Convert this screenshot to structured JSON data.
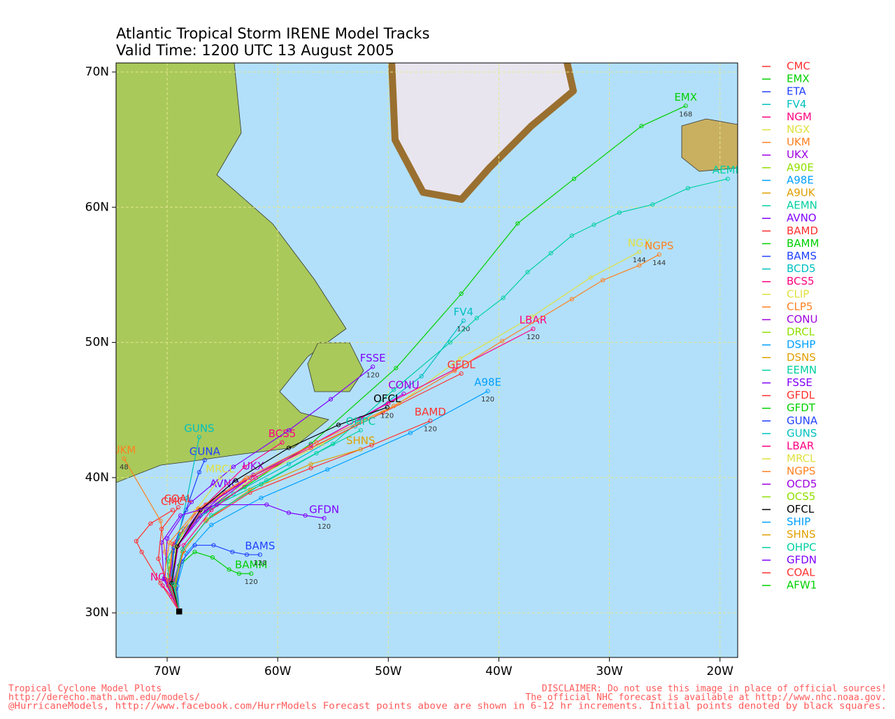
{
  "map": {
    "title": "Atlantic Tropical Storm IRENE Model Tracks",
    "subtitle": "Valid Time: 1200 UTC 13 August 2005",
    "xlim": [
      -74.62,
      -18.4
    ],
    "ylim": [
      26.7,
      70.67
    ],
    "xticks": [
      {
        "value": -70,
        "label": "70W"
      },
      {
        "value": -60,
        "label": "60W"
      },
      {
        "value": -50,
        "label": "50W"
      },
      {
        "value": -40,
        "label": "40W"
      },
      {
        "value": -30,
        "label": "30W"
      },
      {
        "value": -20,
        "label": "20W"
      }
    ],
    "yticks": [
      {
        "value": 30,
        "label": "30N"
      },
      {
        "value": 40,
        "label": "40N"
      },
      {
        "value": 50,
        "label": "50N"
      },
      {
        "value": 60,
        "label": "60N"
      },
      {
        "value": 70,
        "label": "70N"
      }
    ],
    "grid": true,
    "models": [
      {
        "name": "CMC",
        "color": "#ff3030",
        "lon": [
          -68.9,
          -70.6,
          -72.3,
          -72.8,
          -71.5,
          -69.5
        ],
        "lat": [
          30.1,
          32.2,
          34.5,
          35.3,
          36.6,
          37.6
        ]
      },
      {
        "name": "EMX",
        "color": "#00d000",
        "lon": [
          -68.9,
          -69.6,
          -69.8,
          -68.8,
          -66.5,
          -63,
          -57,
          -49.3,
          -43.4,
          -38.3,
          -33.2,
          -27.1,
          -23.1
        ],
        "lat": [
          30.1,
          31.8,
          33.8,
          35.8,
          37.6,
          39.3,
          42.5,
          48.1,
          53.6,
          58.8,
          62.1,
          66.0,
          67.5
        ],
        "end_hour": 168
      },
      {
        "name": "ETA",
        "color": "#2040ff"
      },
      {
        "name": "FV4",
        "color": "#00c0c0",
        "lon": [
          -68.9,
          -69.7,
          -69.5,
          -67.5,
          -64,
          -59,
          -53,
          -47,
          -43.2
        ],
        "lat": [
          30.1,
          32,
          34.5,
          36.8,
          38.8,
          41,
          43.8,
          47.5,
          51.6
        ],
        "end_hour": 120
      },
      {
        "name": "NGM",
        "color": "#ff0080",
        "lon": [
          -68.9,
          -69.6,
          -70.4
        ],
        "lat": [
          30.1,
          31.2,
          32.0
        ]
      },
      {
        "name": "NGX",
        "color": "#e0e040",
        "lon": [
          -68.9,
          -70,
          -69.5,
          -67,
          -62.5,
          -56,
          -49,
          -43.5,
          -37.0,
          -31.7,
          -27.3
        ],
        "lat": [
          30.1,
          32.5,
          35,
          37.5,
          39.8,
          42.5,
          45.5,
          48.8,
          51.9,
          54.8,
          56.7
        ],
        "end_hour": 144
      },
      {
        "name": "UKM",
        "color": "#ff8020",
        "lon": [
          -68.9,
          -69.6,
          -70.2,
          -70.6,
          -73.9
        ],
        "lat": [
          30.1,
          32.3,
          34.5,
          36.8,
          41.4
        ],
        "end_hour": 48
      },
      {
        "name": "UKX",
        "color": "#a000e0",
        "lon": [
          -68.9,
          -69.6,
          -69,
          -66.5,
          -62.2
        ],
        "lat": [
          30.1,
          32.3,
          35,
          37.5,
          40.2
        ]
      },
      {
        "name": "A90E",
        "color": "#90e000"
      },
      {
        "name": "A98E",
        "color": "#00a0ff",
        "lon": [
          -68.9,
          -69.1,
          -68.3,
          -66,
          -61.5,
          -55.5,
          -48,
          -41.0
        ],
        "lat": [
          30.1,
          32,
          34.4,
          36.5,
          38.5,
          40.6,
          43.3,
          46.4
        ],
        "end_hour": 120
      },
      {
        "name": "A9UK",
        "color": "#e0a000"
      },
      {
        "name": "AEMN",
        "color": "#00d0a0",
        "lon": [
          -68.9,
          -69.8,
          -70.0,
          -68.5,
          -65.5,
          -61,
          -55,
          -49.5,
          -44.4,
          -42.0,
          -39.6,
          -37.4,
          -35.3,
          -33.4,
          -31.4,
          -29.1,
          -26.1,
          -22.9,
          -19.3
        ],
        "lat": [
          30.1,
          32,
          34,
          36.2,
          38.0,
          39.8,
          42.5,
          46.5,
          50.0,
          51.8,
          53.3,
          55.2,
          56.6,
          57.9,
          58.7,
          59.6,
          60.2,
          61.4,
          62.1
        ]
      },
      {
        "name": "AVNO",
        "color": "#8000ff",
        "lon": [
          -68.9,
          -69.5,
          -69,
          -67,
          -64.8
        ],
        "lat": [
          30.1,
          32.3,
          35,
          37.2,
          38.9
        ]
      },
      {
        "name": "BAMD",
        "color": "#ff3030",
        "lon": [
          -68.9,
          -69.3,
          -68.5,
          -66.5,
          -62.5,
          -57,
          -51.5,
          -46.2
        ],
        "lat": [
          30.1,
          32.2,
          34.6,
          36.8,
          38.9,
          40.7,
          42.4,
          44.2
        ],
        "end_hour": 120
      },
      {
        "name": "BAMM",
        "color": "#00d000",
        "lon": [
          -68.9,
          -69.3,
          -68.9,
          -67.5,
          -65.9,
          -64.4,
          -63.5,
          -62.4
        ],
        "lat": [
          30.1,
          31.7,
          33.5,
          34.5,
          34.1,
          33.2,
          32.9,
          32.9
        ],
        "end_hour": 120
      },
      {
        "name": "BAMS",
        "color": "#2040ff",
        "lon": [
          -68.9,
          -69.2,
          -68.7,
          -67.5,
          -65.8,
          -64.1,
          -62.8,
          -61.6
        ],
        "lat": [
          30.1,
          31.8,
          33.8,
          35.0,
          35.0,
          34.5,
          34.3,
          34.3
        ],
        "end_hour": 120
      },
      {
        "name": "BCD5",
        "color": "#00c0c0"
      },
      {
        "name": "BCS5",
        "color": "#ff0080",
        "lon": [
          -68.9,
          -69.6,
          -69,
          -66.5,
          -63,
          -59.6
        ],
        "lat": [
          30.1,
          32.3,
          35,
          38,
          40.8,
          42.6
        ]
      },
      {
        "name": "CLIP",
        "color": "#e0e040"
      },
      {
        "name": "CLP5",
        "color": "#ff8020"
      },
      {
        "name": "CONU",
        "color": "#a000e0",
        "lon": [
          -68.9,
          -69.8,
          -69.3,
          -67,
          -62.5,
          -57,
          -52.5,
          -48.6
        ],
        "lat": [
          30.1,
          32.3,
          35,
          37.6,
          40,
          42.4,
          44.4,
          46.2
        ]
      },
      {
        "name": "DRCL",
        "color": "#90e000"
      },
      {
        "name": "DSHP",
        "color": "#00a0ff"
      },
      {
        "name": "DSNS",
        "color": "#e0a000"
      },
      {
        "name": "EEMN",
        "color": "#00d0a0"
      },
      {
        "name": "FSSE",
        "color": "#8000ff",
        "lon": [
          -68.9,
          -70.2,
          -70,
          -67.8,
          -64,
          -59,
          -55.2,
          -51.4
        ],
        "lat": [
          30.1,
          32.5,
          35.5,
          38.2,
          40.8,
          43.5,
          45.8,
          48.2
        ],
        "end_hour": 120
      },
      {
        "name": "GFDL",
        "color": "#ff3030",
        "lon": [
          -68.9,
          -69.8,
          -69.5,
          -67.2,
          -63,
          -57,
          -50.5,
          -43.4
        ],
        "lat": [
          30.1,
          32.4,
          35.1,
          37.6,
          39.8,
          42.2,
          44.8,
          47.7
        ]
      },
      {
        "name": "GFDT",
        "color": "#00d000"
      },
      {
        "name": "GUNA",
        "color": "#2040ff",
        "lon": [
          -68.9,
          -69.6,
          -69.4,
          -68.3,
          -67.1,
          -66.6
        ],
        "lat": [
          30.1,
          32.2,
          34.8,
          37.6,
          40.4,
          41.3
        ]
      },
      {
        "name": "GUNS",
        "color": "#00c0c0",
        "lon": [
          -68.9,
          -69.5,
          -69.2,
          -68.2,
          -67.1
        ],
        "lat": [
          30.1,
          32.2,
          34.9,
          38.5,
          43.0
        ]
      },
      {
        "name": "LBAR",
        "color": "#ff0080",
        "lon": [
          -68.9,
          -69.4,
          -68.5,
          -66,
          -62,
          -56.5,
          -50,
          -44,
          -36.9
        ],
        "lat": [
          30.1,
          32.3,
          35,
          37.6,
          40,
          42.6,
          45.5,
          48,
          51.0
        ],
        "end_hour": 120
      },
      {
        "name": "MRCL",
        "color": "#e0e040",
        "lon": [
          -68.9,
          -69.6,
          -69.2,
          -67.5,
          -65.2
        ],
        "lat": [
          30.1,
          32.2,
          34.9,
          37.5,
          40.0
        ]
      },
      {
        "name": "NGPS",
        "color": "#ff8020",
        "lon": [
          -68.9,
          -70.3,
          -69.8,
          -67.2,
          -62.8,
          -56.5,
          -49.5,
          -44,
          -39.7,
          -33.4,
          -30.6,
          -27.3,
          -25.5
        ],
        "lat": [
          30.1,
          32.5,
          35.2,
          37.7,
          40,
          42.6,
          45.3,
          47.9,
          50.1,
          53.2,
          54.6,
          55.7,
          56.5
        ],
        "end_hour": 144
      },
      {
        "name": "OCD5",
        "color": "#a000e0"
      },
      {
        "name": "OCS5",
        "color": "#90e000"
      },
      {
        "name": "OFCL",
        "color": "#000000",
        "lon": [
          -68.9,
          -69.6,
          -69.1,
          -67,
          -63.8,
          -59,
          -54.5,
          -50.1
        ],
        "lat": [
          30.1,
          32.2,
          34.9,
          37.6,
          39.8,
          42.2,
          43.9,
          45.2
        ],
        "end_hour": 120
      },
      {
        "name": "SHIP",
        "color": "#00a0ff"
      },
      {
        "name": "SHNS",
        "color": "#e0a000",
        "lon": [
          -68.9,
          -69.3,
          -68.6,
          -66.4,
          -62.5,
          -57,
          -52.5
        ],
        "lat": [
          30.1,
          32,
          34.5,
          36.9,
          39.1,
          41.0,
          42.1
        ]
      },
      {
        "name": "OHPC",
        "color": "#00d0a0",
        "lon": [
          -68.9,
          -69.4,
          -68.6,
          -66,
          -61.5,
          -56.5,
          -52.5
        ],
        "lat": [
          30.1,
          32.1,
          34.7,
          37.2,
          39.5,
          41.8,
          43.5
        ]
      },
      {
        "name": "GFDN",
        "color": "#8000ff",
        "lon": [
          -68.9,
          -70.3,
          -70.5,
          -68.8,
          -65.5,
          -61,
          -59,
          -57.5,
          -55.8
        ],
        "lat": [
          30.1,
          32.5,
          35.2,
          37.2,
          38.0,
          38.0,
          37.4,
          37.2,
          37.0
        ],
        "end_hour": 120
      },
      {
        "name": "COAL",
        "color": "#ff3030",
        "lon": [
          -68.9,
          -69.9,
          -70.8,
          -70.5,
          -69.0
        ],
        "lat": [
          30.1,
          32,
          34,
          36.2,
          37.8
        ]
      },
      {
        "name": "AFW1",
        "color": "#00d000"
      }
    ]
  },
  "footer": {
    "left": [
      "Tropical Cyclone Model Plots",
      "http://derecho.math.uwm.edu/models/"
    ],
    "right": [
      "DISCLAIMER: Do not use this image in place of official sources!",
      "The official NHC forecast is available at http://www.nhc.noaa.gov."
    ],
    "bottom": "@HurricaneModels, http://www.facebook.com/HurrModels  Forecast points above are shown in 6-12 hr increments. Initial points denoted by black squares."
  }
}
